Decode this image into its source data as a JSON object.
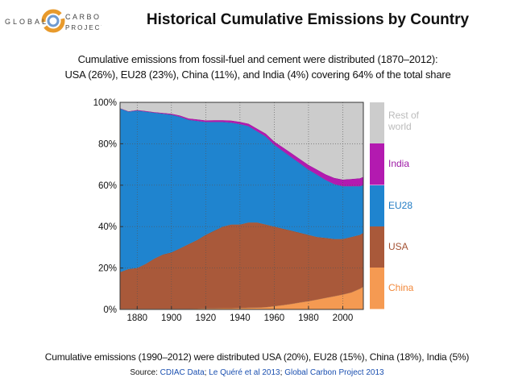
{
  "header": {
    "title": "Historical Cumulative Emissions by Country",
    "logo_lines": [
      "GLOBAL",
      "CARBON",
      "PROJECT"
    ]
  },
  "subtitle": {
    "line1": "Cumulative emissions from fossil-fuel and cement were distributed (1870–2012):",
    "line2": "USA (26%), EU28 (23%), China (11%), and India (4%) covering 64% of the total share"
  },
  "footnote": "Cumulative emissions (1990–2012) were distributed USA (20%), EU28 (15%), China (18%), India (5%)",
  "source": {
    "prefix": "Source: ",
    "link1": "CDIAC Data",
    "sep1": "; ",
    "link2": "Le Quéré et al 2013",
    "sep2": "; ",
    "link3": "Global Carbon Project 2013"
  },
  "colors": {
    "china": "#f59a52",
    "usa": "#a9593a",
    "eu28": "#1f84cf",
    "india": "#b31ab0",
    "rest": "#cccccc"
  },
  "chart_data": {
    "type": "area",
    "stacked": true,
    "title": "",
    "xlabel": "",
    "ylabel": "",
    "xlim": [
      1870,
      2012
    ],
    "ylim": [
      0,
      100
    ],
    "x_ticks": [
      1880,
      1900,
      1920,
      1940,
      1960,
      1980,
      2000
    ],
    "y_tick_labels": [
      "0%",
      "20%",
      "40%",
      "60%",
      "80%",
      "100%"
    ],
    "grid": true,
    "x": [
      1870,
      1875,
      1880,
      1885,
      1890,
      1895,
      1900,
      1905,
      1910,
      1915,
      1920,
      1925,
      1930,
      1935,
      1940,
      1945,
      1950,
      1955,
      1960,
      1965,
      1970,
      1975,
      1980,
      1985,
      1990,
      1995,
      2000,
      2005,
      2010,
      2012
    ],
    "series": [
      {
        "name": "China",
        "values": [
          0.3,
          0.3,
          0.3,
          0.3,
          0.3,
          0.3,
          0.3,
          0.3,
          0.3,
          0.4,
          0.5,
          0.5,
          0.6,
          0.6,
          0.7,
          0.8,
          0.9,
          1.1,
          1.6,
          2.1,
          2.7,
          3.4,
          4.0,
          4.8,
          5.6,
          6.4,
          7.2,
          8.2,
          10.0,
          11.0
        ]
      },
      {
        "name": "USA",
        "values": [
          17.7,
          19.2,
          19.7,
          21.7,
          24.2,
          26.2,
          27.2,
          29.2,
          31.2,
          33.1,
          35.5,
          37.5,
          39.4,
          40.4,
          40.3,
          41.2,
          41.1,
          39.9,
          38.4,
          36.9,
          35.3,
          33.6,
          32.0,
          30.2,
          28.9,
          27.6,
          26.8,
          26.8,
          26.0,
          26.0
        ]
      },
      {
        "name": "EU28",
        "values": [
          79.0,
          76.0,
          76.0,
          73.5,
          70.5,
          68.0,
          66.5,
          63.5,
          60.0,
          57.5,
          54.5,
          52.5,
          50.5,
          49.2,
          48.5,
          46.5,
          44.0,
          42.5,
          39.5,
          37.5,
          35.5,
          33.5,
          31.5,
          30.0,
          28.0,
          26.5,
          25.5,
          24.5,
          23.5,
          23.0
        ]
      },
      {
        "name": "India",
        "values": [
          0.2,
          0.2,
          0.3,
          0.3,
          0.3,
          0.4,
          0.5,
          0.6,
          0.7,
          0.8,
          0.8,
          0.9,
          0.9,
          1.0,
          1.1,
          1.2,
          1.3,
          1.4,
          1.6,
          1.8,
          2.0,
          2.1,
          2.3,
          2.5,
          2.7,
          3.0,
          3.2,
          3.5,
          3.8,
          4.0
        ]
      },
      {
        "name": "Rest of world",
        "values": [
          2.8,
          4.3,
          3.7,
          4.2,
          4.7,
          5.1,
          5.5,
          6.4,
          7.8,
          8.2,
          8.7,
          8.6,
          8.6,
          8.8,
          9.4,
          10.3,
          12.7,
          15.1,
          18.9,
          21.7,
          24.5,
          27.4,
          30.2,
          32.5,
          34.8,
          36.5,
          37.3,
          37.0,
          36.7,
          36.0
        ]
      }
    ],
    "legend": {
      "placement": "right",
      "entries": [
        {
          "name": "Rest of world",
          "lines": [
            "Rest of",
            "world"
          ],
          "color": "#cccccc",
          "text_color": "#bbbbbb"
        },
        {
          "name": "India",
          "lines": [
            "India"
          ],
          "color": "#b31ab0",
          "text_color": "#9e1aa6"
        },
        {
          "name": "EU28",
          "lines": [
            "EU28"
          ],
          "color": "#1f84cf",
          "text_color": "#1f7bc4"
        },
        {
          "name": "USA",
          "lines": [
            "USA"
          ],
          "color": "#a9593a",
          "text_color": "#a35132"
        },
        {
          "name": "China",
          "lines": [
            "China"
          ],
          "color": "#f59a52",
          "text_color": "#f2883a"
        }
      ]
    }
  }
}
